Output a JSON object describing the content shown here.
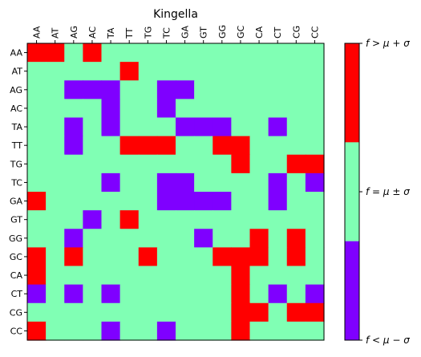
{
  "chart_data": {
    "type": "heatmap",
    "title": "Kingella",
    "xlabels": [
      "AA",
      "AT",
      "AG",
      "AC",
      "TA",
      "TT",
      "TG",
      "TC",
      "GA",
      "GT",
      "GG",
      "GC",
      "CA",
      "CT",
      "CG",
      "CC"
    ],
    "ylabels": [
      "AA",
      "AT",
      "AG",
      "AC",
      "TA",
      "TT",
      "TG",
      "TC",
      "GA",
      "GT",
      "GG",
      "GC",
      "CA",
      "CT",
      "CG",
      "CC"
    ],
    "category_codes": {
      "-1": "below",
      "0": "within",
      "1": "above"
    },
    "colors": {
      "below": "#7f00ff",
      "within": "#80ffb4",
      "above": "#ff0000"
    },
    "matrix": [
      [
        1,
        1,
        0,
        1,
        0,
        0,
        0,
        0,
        0,
        0,
        0,
        0,
        0,
        0,
        0,
        0
      ],
      [
        0,
        0,
        0,
        0,
        0,
        1,
        0,
        0,
        0,
        0,
        0,
        0,
        0,
        0,
        0,
        0
      ],
      [
        0,
        0,
        -1,
        -1,
        -1,
        0,
        0,
        -1,
        -1,
        0,
        0,
        0,
        0,
        0,
        0,
        0
      ],
      [
        0,
        0,
        0,
        0,
        -1,
        0,
        0,
        -1,
        0,
        0,
        0,
        0,
        0,
        0,
        0,
        0
      ],
      [
        0,
        0,
        -1,
        0,
        -1,
        0,
        0,
        0,
        -1,
        -1,
        -1,
        0,
        0,
        -1,
        0,
        0
      ],
      [
        0,
        0,
        -1,
        0,
        0,
        1,
        1,
        1,
        0,
        0,
        1,
        1,
        0,
        0,
        0,
        0
      ],
      [
        0,
        0,
        0,
        0,
        0,
        0,
        0,
        0,
        0,
        0,
        0,
        1,
        0,
        0,
        1,
        1
      ],
      [
        0,
        0,
        0,
        0,
        -1,
        0,
        0,
        -1,
        -1,
        0,
        0,
        0,
        0,
        -1,
        0,
        -1
      ],
      [
        1,
        0,
        0,
        0,
        0,
        0,
        0,
        -1,
        -1,
        -1,
        -1,
        0,
        0,
        -1,
        0,
        0
      ],
      [
        0,
        0,
        0,
        -1,
        0,
        1,
        0,
        0,
        0,
        0,
        0,
        0,
        0,
        0,
        0,
        0
      ],
      [
        0,
        0,
        -1,
        0,
        0,
        0,
        0,
        0,
        0,
        -1,
        0,
        0,
        1,
        0,
        1,
        0
      ],
      [
        1,
        0,
        1,
        0,
        0,
        0,
        1,
        0,
        0,
        0,
        1,
        1,
        1,
        0,
        1,
        0
      ],
      [
        1,
        0,
        0,
        0,
        0,
        0,
        0,
        0,
        0,
        0,
        0,
        1,
        0,
        0,
        0,
        0
      ],
      [
        -1,
        0,
        -1,
        0,
        -1,
        0,
        0,
        0,
        0,
        0,
        0,
        1,
        0,
        -1,
        0,
        -1
      ],
      [
        0,
        0,
        0,
        0,
        0,
        0,
        0,
        0,
        0,
        0,
        0,
        1,
        1,
        0,
        1,
        1
      ],
      [
        1,
        0,
        0,
        0,
        -1,
        0,
        0,
        -1,
        0,
        0,
        0,
        1,
        0,
        0,
        0,
        0
      ]
    ],
    "colorbar": {
      "labels": {
        "top": "f > μ + σ",
        "middle": "f = μ ± σ",
        "bottom": "f < μ − σ"
      }
    }
  }
}
